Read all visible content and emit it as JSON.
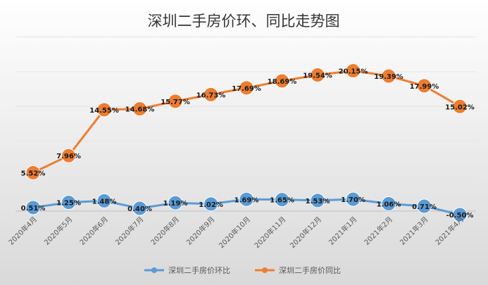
{
  "chart_data": {
    "type": "line",
    "title": "深圳二手房价环、同比走势图",
    "x_type": "category",
    "categories": [
      "2020年4月",
      "2020年5月",
      "2020年6月",
      "2020年7月",
      "2020年8月",
      "2020年9月",
      "2020年10月",
      "2020年11月",
      "2020年12月",
      "2021年1月",
      "2021年2月",
      "2021年3月",
      "2021年4月"
    ],
    "ylim": [
      -1,
      25
    ],
    "grid": true,
    "legend_position": "bottom",
    "series": [
      {
        "name": "深圳二手房价环比",
        "values": [
          0.51,
          1.25,
          1.48,
          0.4,
          1.19,
          1.02,
          1.69,
          1.65,
          1.53,
          1.7,
          1.06,
          0.71,
          -0.5
        ],
        "labels": [
          "0.51%",
          "1.25%",
          "1.48%",
          "0.40%",
          "1.19%",
          "1.02%",
          "1.69%",
          "1.65%",
          "1.53%",
          "1.70%",
          "1.06%",
          "0.71%",
          "-0.50%"
        ],
        "color": "#5B9BD5"
      },
      {
        "name": "深圳二手房价同比",
        "values": [
          5.52,
          7.96,
          14.55,
          14.68,
          15.77,
          16.73,
          17.69,
          18.69,
          19.54,
          20.15,
          19.39,
          17.99,
          15.02
        ],
        "labels": [
          "5.52%",
          "7.96%",
          "14.55%",
          "14.68%",
          "15.77%",
          "16.73%",
          "17.69%",
          "18.69%",
          "19.54%",
          "20.15%",
          "19.39%",
          "17.99%",
          "15.02%"
        ],
        "color": "#ED7D31"
      }
    ]
  }
}
